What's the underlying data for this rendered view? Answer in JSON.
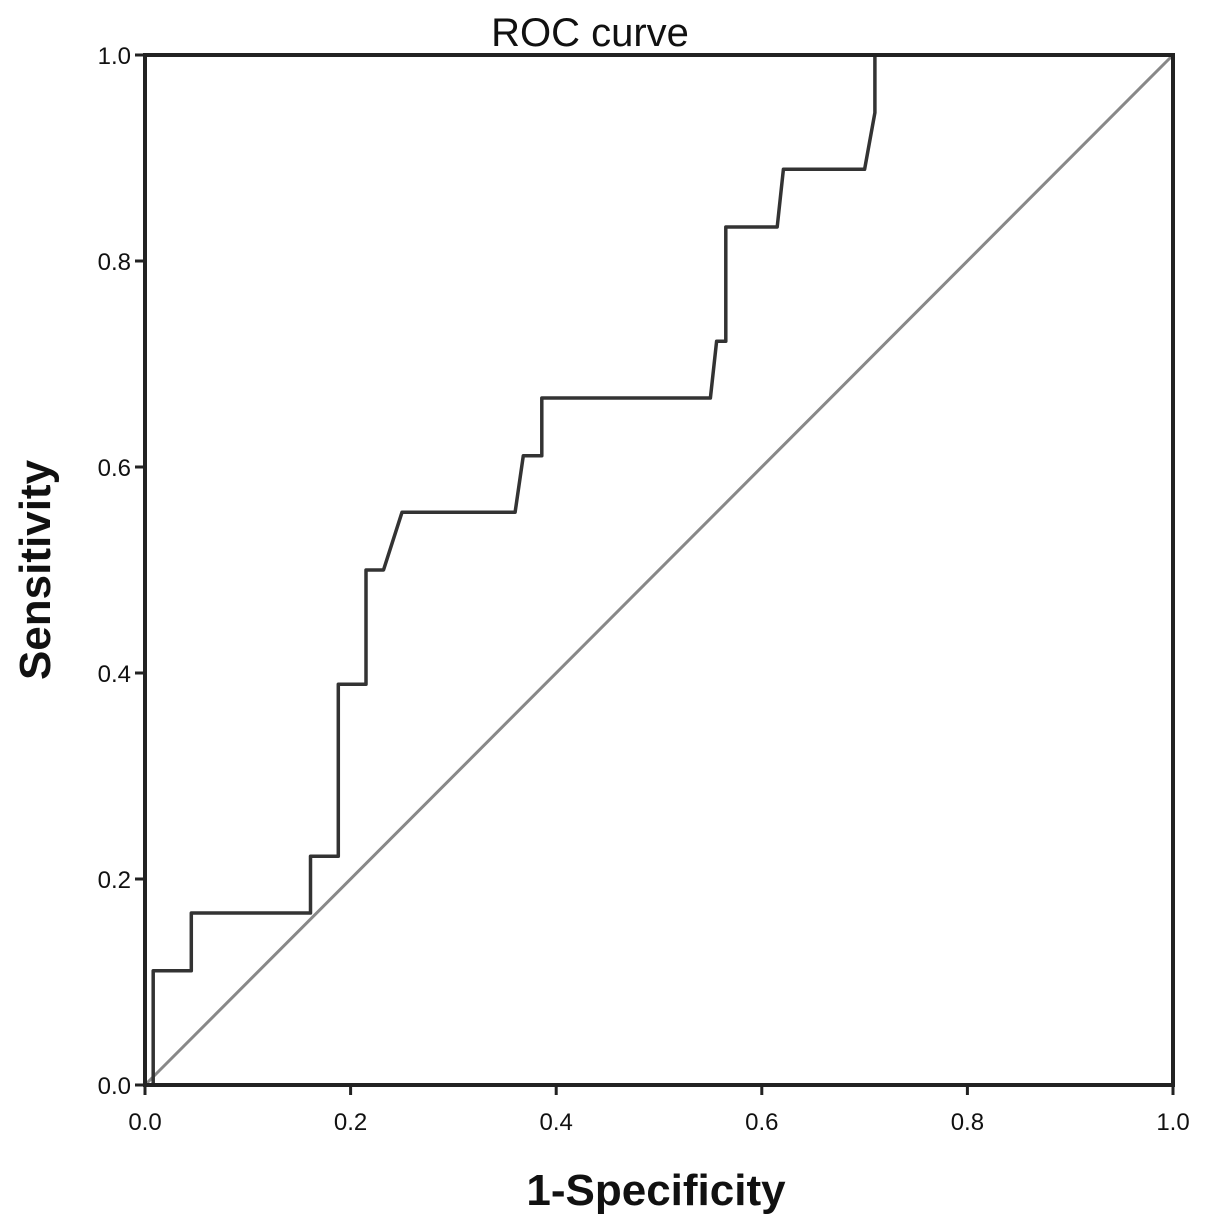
{
  "chart_data": {
    "type": "line",
    "title": "ROC curve",
    "xlabel": "1-Specificity",
    "ylabel": "Sensitivity",
    "xlim": [
      0.0,
      1.0
    ],
    "ylim": [
      0.0,
      1.0
    ],
    "x_ticks": [
      "0.0",
      "0.2",
      "0.4",
      "0.6",
      "0.8",
      "1.0"
    ],
    "y_ticks": [
      "0.0",
      "0.2",
      "0.4",
      "0.6",
      "0.8",
      "1.0"
    ],
    "grid": false,
    "legend": "none",
    "series": [
      {
        "color": "#333333",
        "points": [
          [
            0.0,
            0.0
          ],
          [
            0.008,
            0.0
          ],
          [
            0.008,
            0.111
          ],
          [
            0.045,
            0.111
          ],
          [
            0.045,
            0.167
          ],
          [
            0.161,
            0.167
          ],
          [
            0.161,
            0.222
          ],
          [
            0.188,
            0.222
          ],
          [
            0.188,
            0.389
          ],
          [
            0.215,
            0.389
          ],
          [
            0.215,
            0.5
          ],
          [
            0.232,
            0.5
          ],
          [
            0.25,
            0.556
          ],
          [
            0.36,
            0.556
          ],
          [
            0.368,
            0.611
          ],
          [
            0.386,
            0.611
          ],
          [
            0.386,
            0.667
          ],
          [
            0.55,
            0.667
          ],
          [
            0.556,
            0.722
          ],
          [
            0.565,
            0.722
          ],
          [
            0.565,
            0.833
          ],
          [
            0.615,
            0.833
          ],
          [
            0.621,
            0.889
          ],
          [
            0.7,
            0.889
          ],
          [
            0.71,
            0.944
          ],
          [
            0.71,
            1.0
          ],
          [
            1.0,
            1.0
          ]
        ]
      },
      {
        "color": "#888888",
        "points": [
          [
            0.0,
            0.0
          ],
          [
            1.0,
            1.0
          ]
        ]
      }
    ]
  }
}
